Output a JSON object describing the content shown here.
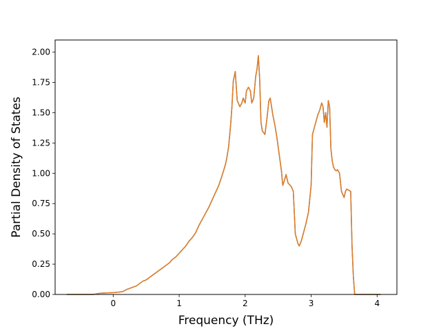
{
  "chart_data": {
    "type": "line",
    "title": "",
    "xlabel": "Frequency (THz)",
    "ylabel": "Partial Density of States",
    "xlim": [
      -0.88,
      4.3
    ],
    "ylim": [
      0.0,
      2.1
    ],
    "xticks": [
      0,
      1,
      2,
      3,
      4
    ],
    "xtick_labels": [
      "0",
      "1",
      "2",
      "3",
      "4"
    ],
    "yticks": [
      0.0,
      0.25,
      0.5,
      0.75,
      1.0,
      1.25,
      1.5,
      1.75,
      2.0
    ],
    "ytick_labels": [
      "0.00",
      "0.25",
      "0.50",
      "0.75",
      "1.00",
      "1.25",
      "1.50",
      "1.75",
      "2.00"
    ],
    "grid": false,
    "legend": "none",
    "series": [
      {
        "color": "#1f77b4",
        "x": [
          -0.7,
          -0.3,
          -0.2,
          0.0,
          0.1,
          0.15,
          0.2,
          0.3,
          0.35,
          0.4,
          0.45,
          0.5,
          0.55,
          0.6,
          0.65,
          0.7,
          0.75,
          0.8,
          0.85,
          0.9,
          0.95,
          1.0,
          1.05,
          1.1,
          1.15,
          1.2,
          1.25,
          1.3,
          1.35,
          1.4,
          1.45,
          1.5,
          1.55,
          1.6,
          1.65,
          1.7,
          1.72,
          1.75,
          1.78,
          1.8,
          1.82,
          1.85,
          1.88,
          1.92,
          1.95,
          1.97,
          2.0,
          2.02,
          2.05,
          2.08,
          2.1,
          2.13,
          2.16,
          2.18,
          2.2,
          2.22,
          2.24,
          2.26,
          2.3,
          2.33,
          2.36,
          2.38,
          2.4,
          2.42,
          2.45,
          2.48,
          2.51,
          2.53,
          2.55,
          2.57,
          2.6,
          2.62,
          2.65,
          2.7,
          2.73,
          2.76,
          2.8,
          2.82,
          2.85,
          2.88,
          2.92,
          2.96,
          3.0,
          3.02,
          3.05,
          3.07,
          3.1,
          3.13,
          3.16,
          3.18,
          3.2,
          3.22,
          3.24,
          3.26,
          3.28,
          3.3,
          3.32,
          3.34,
          3.36,
          3.38,
          3.4,
          3.43,
          3.46,
          3.5,
          3.52,
          3.54,
          3.57,
          3.6,
          3.62,
          3.64,
          3.66,
          3.68,
          4.05
        ],
        "y": [
          0.0,
          0.0,
          0.01,
          0.015,
          0.02,
          0.025,
          0.04,
          0.06,
          0.07,
          0.09,
          0.11,
          0.12,
          0.14,
          0.16,
          0.18,
          0.2,
          0.22,
          0.24,
          0.26,
          0.29,
          0.31,
          0.34,
          0.37,
          0.4,
          0.44,
          0.47,
          0.51,
          0.57,
          0.62,
          0.67,
          0.72,
          0.78,
          0.84,
          0.9,
          0.98,
          1.07,
          1.12,
          1.22,
          1.4,
          1.55,
          1.76,
          1.84,
          1.6,
          1.55,
          1.58,
          1.62,
          1.58,
          1.68,
          1.71,
          1.68,
          1.58,
          1.62,
          1.8,
          1.86,
          1.97,
          1.78,
          1.42,
          1.35,
          1.32,
          1.45,
          1.6,
          1.62,
          1.55,
          1.48,
          1.4,
          1.3,
          1.18,
          1.1,
          1.02,
          0.9,
          0.95,
          0.99,
          0.92,
          0.89,
          0.85,
          0.5,
          0.42,
          0.4,
          0.44,
          0.5,
          0.58,
          0.68,
          0.9,
          1.32,
          1.38,
          1.42,
          1.48,
          1.52,
          1.58,
          1.55,
          1.42,
          1.5,
          1.38,
          1.6,
          1.55,
          1.2,
          1.1,
          1.05,
          1.03,
          1.02,
          1.03,
          1.0,
          0.85,
          0.8,
          0.85,
          0.87,
          0.86,
          0.85,
          0.4,
          0.15,
          0.0,
          0.0,
          0.0
        ]
      },
      {
        "color": "#e57c22",
        "x": [
          -0.7,
          -0.3,
          -0.2,
          0.0,
          0.1,
          0.15,
          0.2,
          0.3,
          0.35,
          0.4,
          0.45,
          0.5,
          0.55,
          0.6,
          0.65,
          0.7,
          0.75,
          0.8,
          0.85,
          0.9,
          0.95,
          1.0,
          1.05,
          1.1,
          1.15,
          1.2,
          1.25,
          1.3,
          1.35,
          1.4,
          1.45,
          1.5,
          1.55,
          1.6,
          1.65,
          1.7,
          1.72,
          1.75,
          1.78,
          1.8,
          1.82,
          1.85,
          1.88,
          1.92,
          1.95,
          1.97,
          2.0,
          2.02,
          2.05,
          2.08,
          2.1,
          2.13,
          2.16,
          2.18,
          2.2,
          2.22,
          2.24,
          2.26,
          2.3,
          2.33,
          2.36,
          2.38,
          2.4,
          2.42,
          2.45,
          2.48,
          2.51,
          2.53,
          2.55,
          2.57,
          2.6,
          2.62,
          2.65,
          2.7,
          2.73,
          2.76,
          2.8,
          2.82,
          2.85,
          2.88,
          2.92,
          2.96,
          3.0,
          3.02,
          3.05,
          3.07,
          3.1,
          3.13,
          3.16,
          3.18,
          3.2,
          3.22,
          3.24,
          3.26,
          3.28,
          3.3,
          3.32,
          3.34,
          3.36,
          3.38,
          3.4,
          3.43,
          3.46,
          3.5,
          3.52,
          3.54,
          3.57,
          3.6,
          3.62,
          3.64,
          3.66,
          3.68,
          4.05
        ],
        "y": [
          0.0,
          0.0,
          0.01,
          0.015,
          0.02,
          0.025,
          0.04,
          0.06,
          0.07,
          0.09,
          0.11,
          0.12,
          0.14,
          0.16,
          0.18,
          0.2,
          0.22,
          0.24,
          0.26,
          0.29,
          0.31,
          0.34,
          0.37,
          0.4,
          0.44,
          0.47,
          0.51,
          0.57,
          0.62,
          0.67,
          0.72,
          0.78,
          0.84,
          0.9,
          0.98,
          1.07,
          1.12,
          1.22,
          1.4,
          1.55,
          1.76,
          1.84,
          1.6,
          1.55,
          1.58,
          1.62,
          1.58,
          1.68,
          1.71,
          1.68,
          1.58,
          1.62,
          1.8,
          1.86,
          1.97,
          1.78,
          1.42,
          1.35,
          1.32,
          1.45,
          1.6,
          1.62,
          1.55,
          1.48,
          1.4,
          1.3,
          1.18,
          1.1,
          1.02,
          0.9,
          0.95,
          0.99,
          0.92,
          0.89,
          0.85,
          0.5,
          0.42,
          0.4,
          0.44,
          0.5,
          0.58,
          0.68,
          0.9,
          1.32,
          1.38,
          1.42,
          1.48,
          1.52,
          1.58,
          1.55,
          1.42,
          1.5,
          1.38,
          1.6,
          1.55,
          1.2,
          1.1,
          1.05,
          1.03,
          1.02,
          1.03,
          1.0,
          0.85,
          0.8,
          0.85,
          0.87,
          0.86,
          0.85,
          0.4,
          0.15,
          0.0,
          0.0,
          0.0
        ]
      }
    ]
  }
}
